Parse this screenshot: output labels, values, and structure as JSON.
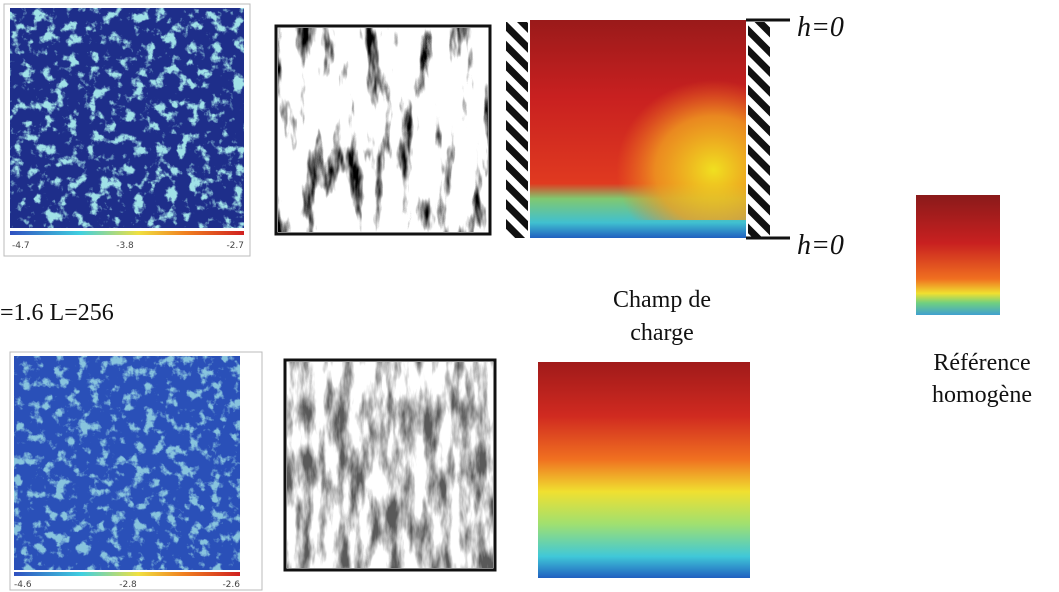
{
  "top_row": {
    "colorbar_labels": [
      "-4.7",
      "-3.8",
      "-2.7"
    ],
    "boundary_labels": [
      "h=0",
      "h=0"
    ]
  },
  "caption": "=1.6 L=256",
  "head_field_label": [
    "Champ de",
    "charge"
  ],
  "reference_label": [
    "Référence",
    "homogène"
  ],
  "bottom_row": {
    "colorbar_labels": [
      "-4.6",
      "-2.8",
      "-2.6"
    ]
  }
}
